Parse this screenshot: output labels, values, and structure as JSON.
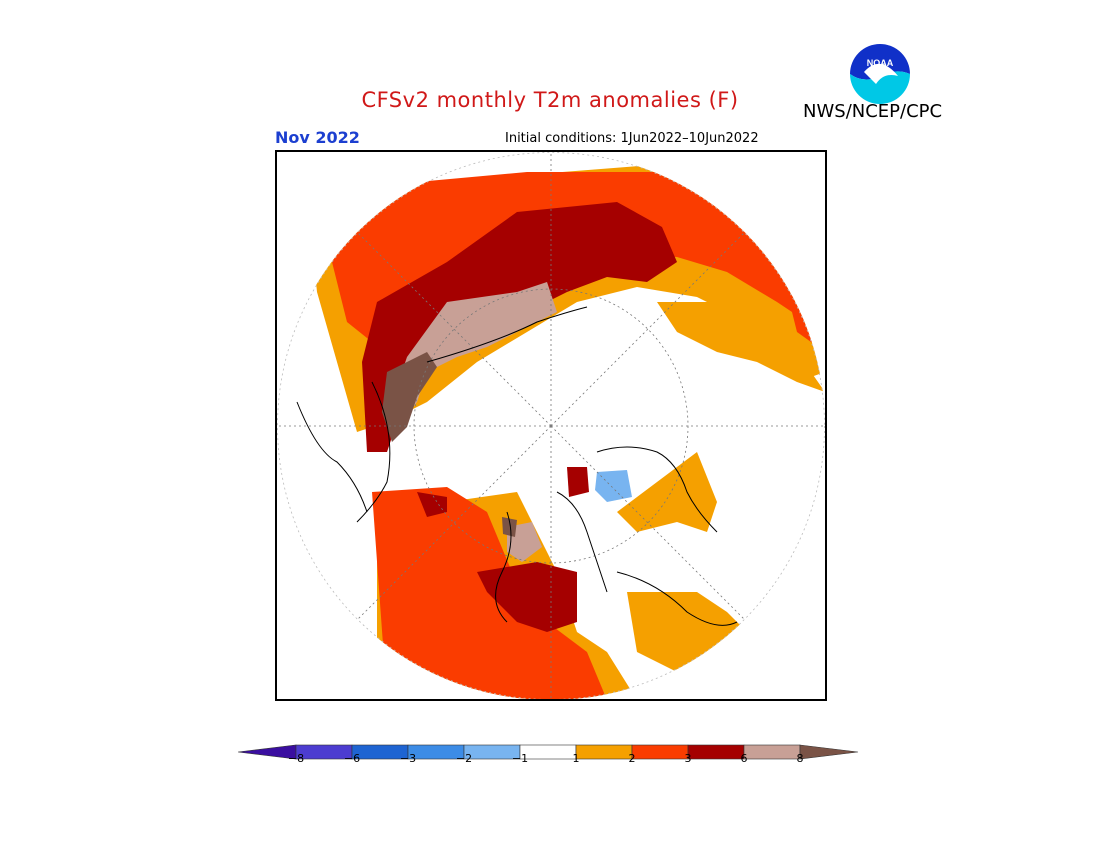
{
  "header": {
    "title": "CFSv2 monthly T2m anomalies (F)",
    "month": "Nov 2022",
    "initial_conditions": "Initial conditions: 1Jun2022–10Jun2022",
    "agency": "NWS/NCEP/CPC",
    "logo_text": "NOAA"
  },
  "map": {
    "projection": "north polar stereographic",
    "anomaly_classes": [
      {
        "range": "1 to 2",
        "color": "#f5a000"
      },
      {
        "range": "2 to 3",
        "color": "#fa3c00"
      },
      {
        "range": "3 to 6",
        "color": "#a50000"
      },
      {
        "range": "6 to 8",
        "color": "#c8a096"
      },
      {
        "range": "> 8",
        "color": "#7a5346"
      },
      {
        "range": "-1 to -2",
        "color": "#78b4f0"
      }
    ]
  },
  "colorbar": {
    "ticks": [
      "−8",
      "−6",
      "−3",
      "−2",
      "−1",
      "1",
      "2",
      "3",
      "6",
      "8"
    ],
    "colors": {
      "below_min": "#3a0ea0",
      "bins": [
        "#4c3cd0",
        "#1e64d2",
        "#3c8ce6",
        "#78b4f0",
        "#ffffff",
        "#f5a000",
        "#fa3c00",
        "#a50000",
        "#c8a096"
      ],
      "above_max": "#7a5346"
    }
  }
}
